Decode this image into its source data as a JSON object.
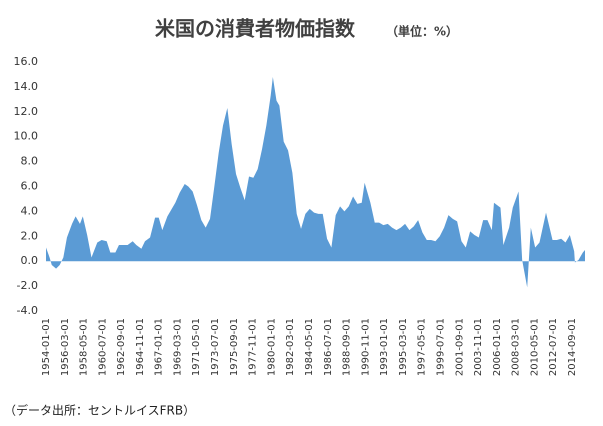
{
  "chart_data": {
    "type": "area",
    "title": "米国の消費者物価指数",
    "subtitle": "（単位：%）",
    "source": "（データ出所：セントルイスFRB）",
    "color": "#5b9bd5",
    "grid": false,
    "ylim": [
      -4,
      16
    ],
    "yticks": [
      {
        "value": 16,
        "label": "16.0"
      },
      {
        "value": 14,
        "label": "14.0"
      },
      {
        "value": 12,
        "label": "12.0"
      },
      {
        "value": 10,
        "label": "10.0"
      },
      {
        "value": 8,
        "label": "8.0"
      },
      {
        "value": 6,
        "label": "6.0"
      },
      {
        "value": 4,
        "label": "4.0"
      },
      {
        "value": 2,
        "label": "2.0"
      },
      {
        "value": 0,
        "label": "0.0"
      },
      {
        "value": -2,
        "label": "-2.0"
      },
      {
        "value": -4,
        "label": "-4.0"
      }
    ],
    "xticks": [
      "1954-01-01",
      "1956-03-01",
      "1958-05-01",
      "1960-07-01",
      "1962-09-01",
      "1964-11-01",
      "1967-01-01",
      "1969-03-01",
      "1971-05-01",
      "1973-07-01",
      "1975-09-01",
      "1977-11-01",
      "1980-01-01",
      "1982-03-01",
      "1984-05-01",
      "1986-07-01",
      "1988-09-01",
      "1990-11-01",
      "1993-01-01",
      "1995-03-01",
      "1997-05-01",
      "1999-07-01",
      "2001-09-01",
      "2003-11-01",
      "2006-01-01",
      "2008-03-01",
      "2010-05-01",
      "2012-07-01",
      "2014-09-01"
    ],
    "x": [
      "1954-01-01",
      "1954-06-01",
      "1954-09-01",
      "1955-03-01",
      "1955-08-01",
      "1956-01-01",
      "1956-06-01",
      "1957-01-01",
      "1957-06-01",
      "1957-12-01",
      "1958-04-01",
      "1958-10-01",
      "1959-04-01",
      "1959-12-01",
      "1960-06-01",
      "1961-01-01",
      "1961-06-01",
      "1962-01-01",
      "1962-06-01",
      "1963-01-01",
      "1963-06-01",
      "1964-01-01",
      "1964-06-01",
      "1965-01-01",
      "1965-06-01",
      "1966-01-01",
      "1966-08-01",
      "1967-01-01",
      "1967-06-01",
      "1968-01-01",
      "1968-12-01",
      "1969-06-01",
      "1970-01-01",
      "1970-06-01",
      "1970-12-01",
      "1971-06-01",
      "1971-12-01",
      "1972-06-01",
      "1972-12-01",
      "1973-06-01",
      "1973-12-01",
      "1974-06-01",
      "1974-12-01",
      "1975-06-01",
      "1975-12-01",
      "1976-06-01",
      "1976-12-01",
      "1977-06-01",
      "1977-12-01",
      "1978-06-01",
      "1978-12-01",
      "1979-06-01",
      "1979-12-01",
      "1980-03-01",
      "1980-08-01",
      "1980-12-01",
      "1981-06-01",
      "1981-12-01",
      "1982-06-01",
      "1982-12-01",
      "1983-06-01",
      "1983-12-01",
      "1984-06-01",
      "1984-12-01",
      "1985-06-01",
      "1985-12-01",
      "1986-06-01",
      "1986-12-01",
      "1987-06-01",
      "1987-12-01",
      "1988-06-01",
      "1988-12-01",
      "1989-06-01",
      "1989-12-01",
      "1990-06-01",
      "1990-10-01",
      "1991-06-01",
      "1991-12-01",
      "1992-06-01",
      "1992-12-01",
      "1993-06-01",
      "1993-12-01",
      "1994-06-01",
      "1994-12-01",
      "1995-06-01",
      "1995-12-01",
      "1996-06-01",
      "1996-12-01",
      "1997-06-01",
      "1997-12-01",
      "1998-06-01",
      "1998-12-01",
      "1999-06-01",
      "1999-12-01",
      "2000-06-01",
      "2000-12-01",
      "2001-06-01",
      "2001-12-01",
      "2002-06-01",
      "2002-12-01",
      "2003-06-01",
      "2003-12-01",
      "2004-06-01",
      "2004-12-01",
      "2005-06-01",
      "2005-09-01",
      "2006-06-01",
      "2006-10-01",
      "2007-06-01",
      "2007-11-01",
      "2008-07-01",
      "2008-12-01",
      "2009-07-01",
      "2009-12-01",
      "2010-06-01",
      "2010-12-01",
      "2011-09-01",
      "2012-06-01",
      "2012-12-01",
      "2013-06-01",
      "2013-12-01",
      "2014-06-01",
      "2014-12-01",
      "2015-01-01",
      "2015-06-01",
      "2015-12-01",
      "2016-03-01"
    ],
    "values": [
      1.1,
      0.3,
      -0.3,
      -0.6,
      -0.3,
      0.3,
      1.9,
      3.0,
      3.6,
      3.0,
      3.6,
      2.1,
      0.3,
      1.5,
      1.7,
      1.6,
      0.7,
      0.7,
      1.3,
      1.3,
      1.3,
      1.6,
      1.3,
      1.0,
      1.6,
      1.9,
      3.5,
      3.5,
      2.5,
      3.6,
      4.7,
      5.5,
      6.2,
      6.0,
      5.6,
      4.5,
      3.3,
      2.7,
      3.4,
      6.0,
      8.7,
      10.9,
      12.3,
      9.4,
      7.0,
      5.9,
      4.9,
      6.8,
      6.7,
      7.4,
      9.0,
      10.9,
      13.3,
      14.8,
      12.9,
      12.5,
      9.6,
      8.9,
      7.1,
      3.8,
      2.6,
      3.8,
      4.2,
      3.9,
      3.8,
      3.8,
      1.8,
      1.1,
      3.7,
      4.4,
      4.0,
      4.4,
      5.2,
      4.6,
      4.7,
      6.3,
      4.7,
      3.1,
      3.1,
      2.9,
      3.0,
      2.7,
      2.5,
      2.7,
      3.0,
      2.5,
      2.8,
      3.3,
      2.3,
      1.7,
      1.7,
      1.6,
      2.0,
      2.7,
      3.7,
      3.4,
      3.2,
      1.6,
      1.1,
      2.4,
      2.1,
      1.9,
      3.3,
      3.3,
      2.5,
      4.7,
      4.3,
      1.3,
      2.7,
      4.3,
      5.6,
      0.1,
      -2.1,
      2.7,
      1.1,
      1.5,
      3.9,
      1.7,
      1.7,
      1.8,
      1.5,
      2.1,
      0.8,
      -0.1,
      0.1,
      0.7,
      0.9
    ]
  }
}
